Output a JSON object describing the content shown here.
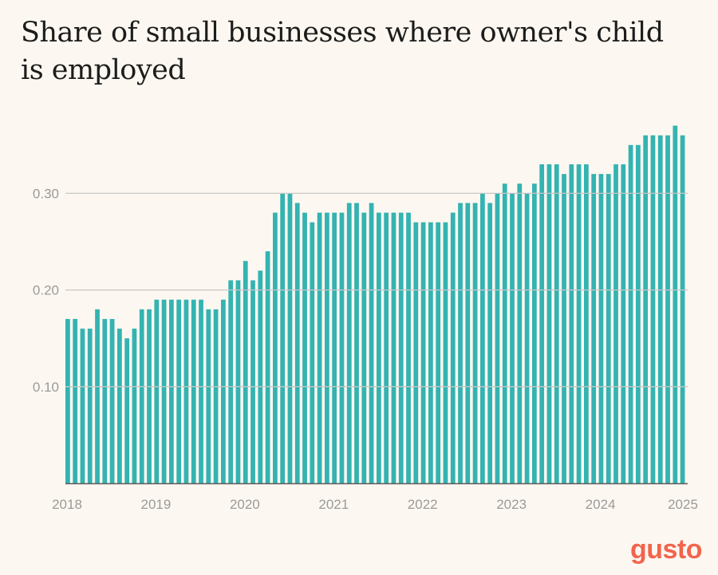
{
  "title": "Share of small businesses where owner's child is employed",
  "brand": "gusto",
  "colors": {
    "bar": "#34b3b1",
    "grid": "#c6c6c6",
    "axis": "#5b5b5b",
    "tick_text": "#9a9a9a",
    "brand": "#f2644d",
    "background": "#fcf8f1"
  },
  "chart_data": {
    "type": "bar",
    "title": "Share of small businesses where owner's child is employed",
    "xlabel": "",
    "ylabel": "",
    "ylim": [
      0,
      0.4
    ],
    "yticks": [
      0.1,
      0.2,
      0.3
    ],
    "ytick_labels": [
      "0.10",
      "0.20",
      "0.30"
    ],
    "xtick_labels": [
      "2018",
      "2019",
      "2020",
      "2021",
      "2022",
      "2023",
      "2024",
      "2025"
    ],
    "grid": "horizontal",
    "start": "2018-01",
    "frequency": "monthly",
    "values": [
      0.17,
      0.17,
      0.16,
      0.16,
      0.18,
      0.17,
      0.17,
      0.16,
      0.15,
      0.16,
      0.18,
      0.18,
      0.19,
      0.19,
      0.19,
      0.19,
      0.19,
      0.19,
      0.19,
      0.18,
      0.18,
      0.19,
      0.21,
      0.21,
      0.23,
      0.21,
      0.22,
      0.24,
      0.28,
      0.3,
      0.3,
      0.29,
      0.28,
      0.27,
      0.28,
      0.28,
      0.28,
      0.28,
      0.29,
      0.29,
      0.28,
      0.29,
      0.28,
      0.28,
      0.28,
      0.28,
      0.28,
      0.27,
      0.27,
      0.27,
      0.27,
      0.27,
      0.28,
      0.29,
      0.29,
      0.29,
      0.3,
      0.29,
      0.3,
      0.31,
      0.3,
      0.31,
      0.3,
      0.31,
      0.33,
      0.33,
      0.33,
      0.32,
      0.33,
      0.33,
      0.33,
      0.32,
      0.32,
      0.32,
      0.33,
      0.33,
      0.35,
      0.35,
      0.36,
      0.36,
      0.36,
      0.36,
      0.37,
      0.36
    ]
  }
}
